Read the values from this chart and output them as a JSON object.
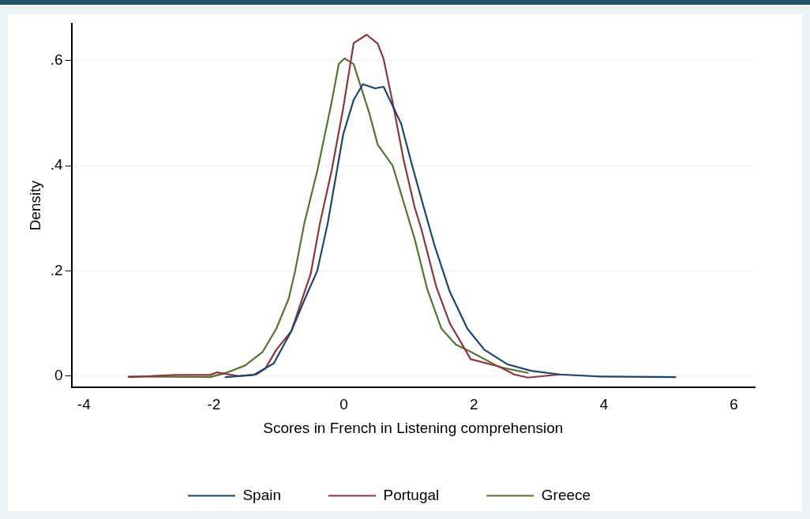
{
  "chart_data": {
    "type": "line",
    "xlabel": "Scores in French in Listening comprehension",
    "ylabel": "Density",
    "xlim": [
      -4.19,
      6.32
    ],
    "ylim": [
      -0.022,
      0.67
    ],
    "xticks": [
      -4,
      -2,
      0,
      2,
      4,
      6
    ],
    "yticks": [
      {
        "value": 0,
        "label": "0"
      },
      {
        "value": 0.2,
        "label": ".2"
      },
      {
        "value": 0.4,
        "label": ".4"
      },
      {
        "value": 0.6,
        "label": ".6"
      }
    ],
    "grid": "y",
    "legend": "bottom",
    "marker": "none",
    "line_style": "solid",
    "series": [
      {
        "name": "Spain",
        "color": "#1a476f",
        "x": [
          -1.82,
          -1.39,
          -1.08,
          -0.81,
          -0.59,
          -0.41,
          -0.25,
          -0.01,
          0.15,
          0.29,
          0.48,
          0.61,
          0.88,
          1.05,
          1.23,
          1.39,
          1.63,
          1.9,
          2.16,
          2.52,
          2.88,
          3.32,
          3.95,
          5.1
        ],
        "values": [
          -0.002,
          0.002,
          0.024,
          0.085,
          0.15,
          0.2,
          0.29,
          0.46,
          0.525,
          0.555,
          0.547,
          0.55,
          0.48,
          0.4,
          0.32,
          0.25,
          0.16,
          0.09,
          0.05,
          0.022,
          0.01,
          0.003,
          -0.001,
          -0.002
        ]
      },
      {
        "name": "Portugal",
        "color": "#90353b",
        "x": [
          -3.31,
          -2.59,
          -2.06,
          -1.95,
          -1.62,
          -1.35,
          -1.21,
          -1.04,
          -0.81,
          -0.51,
          -0.37,
          -0.19,
          -0.01,
          0.15,
          0.35,
          0.52,
          0.61,
          0.75,
          0.92,
          1.09,
          1.19,
          1.42,
          1.63,
          1.95,
          2.39,
          2.62,
          2.83,
          3.32
        ],
        "values": [
          -0.002,
          0.002,
          0.002,
          0.007,
          0,
          0.003,
          0.014,
          0.05,
          0.085,
          0.195,
          0.29,
          0.39,
          0.51,
          0.633,
          0.649,
          0.632,
          0.603,
          0.52,
          0.41,
          0.32,
          0.28,
          0.17,
          0.1,
          0.032,
          0.018,
          0.003,
          -0.003,
          0.003
        ]
      },
      {
        "name": "Greece",
        "color": "#55752f",
        "x": [
          -3.31,
          -2.06,
          -1.79,
          -1.52,
          -1.25,
          -1.04,
          -0.85,
          -0.75,
          -0.61,
          -0.41,
          -0.19,
          -0.08,
          0.01,
          0.15,
          0.25,
          0.39,
          0.52,
          0.75,
          0.92,
          1.09,
          1.28,
          1.5,
          1.72,
          1.95,
          2.39,
          2.83
        ],
        "values": [
          -0.001,
          -0.002,
          0.007,
          0.02,
          0.046,
          0.09,
          0.147,
          0.2,
          0.29,
          0.39,
          0.52,
          0.593,
          0.604,
          0.593,
          0.554,
          0.5,
          0.44,
          0.4,
          0.33,
          0.26,
          0.166,
          0.09,
          0.06,
          0.046,
          0.017,
          0.006
        ]
      }
    ]
  }
}
